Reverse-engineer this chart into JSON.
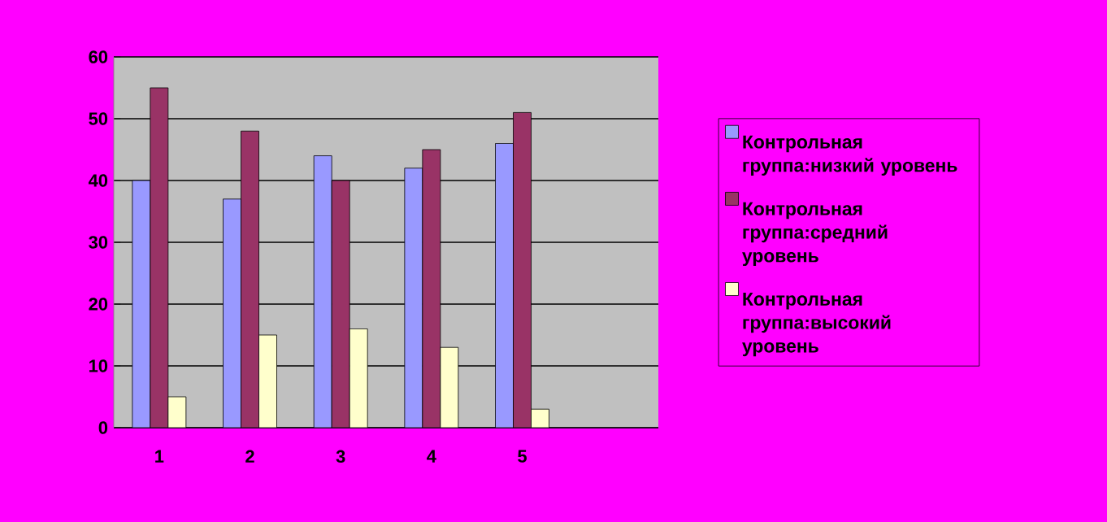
{
  "chart_data": {
    "type": "bar",
    "categories": [
      "1",
      "2",
      "3",
      "4",
      "5",
      null
    ],
    "series": [
      {
        "name": "Контрольная группа:низкий уровень",
        "color": "#9999ff",
        "values": [
          40,
          37,
          44,
          42,
          46,
          null
        ]
      },
      {
        "name": "Контрольная группа:средний уровень",
        "color": "#993366",
        "values": [
          55,
          48,
          40,
          45,
          51,
          null
        ]
      },
      {
        "name": "Контрольная группа:высокий уровень",
        "color": "#ffffcc",
        "values": [
          5,
          15,
          16,
          13,
          3,
          null
        ]
      }
    ],
    "ylim": [
      0,
      60
    ],
    "yticks": [
      0,
      10,
      20,
      30,
      40,
      50,
      60
    ],
    "grid": "y",
    "legend": "right"
  }
}
